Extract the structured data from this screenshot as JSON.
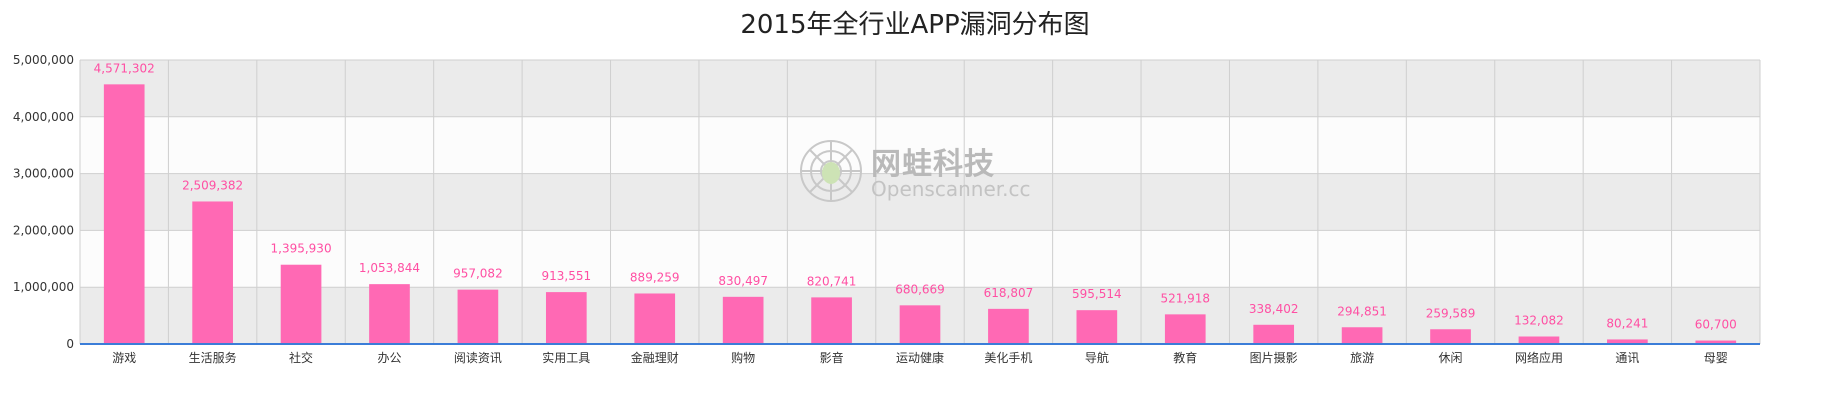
{
  "chart_data": {
    "type": "bar",
    "title": "2015年全行业APP漏洞分布图",
    "categories": [
      "游戏",
      "生活服务",
      "社交",
      "办公",
      "阅读资讯",
      "实用工具",
      "金融理财",
      "购物",
      "影音",
      "运动健康",
      "美化手机",
      "导航",
      "教育",
      "图片摄影",
      "旅游",
      "休闲",
      "网络应用",
      "通讯",
      "母婴"
    ],
    "values": [
      4571302,
      2509382,
      1395930,
      1053844,
      957082,
      913551,
      889259,
      830497,
      820741,
      680669,
      618807,
      595514,
      521918,
      338402,
      294851,
      259589,
      132082,
      80241,
      60700
    ],
    "data_labels": [
      "4,571,302",
      "2,509,382",
      "1,395,930",
      "1,053,844",
      "957,082",
      "913,551",
      "889,259",
      "830,497",
      "820,741",
      "680,669",
      "618,807",
      "595,514",
      "521,918",
      "338,402",
      "294,851",
      "259,589",
      "132,082",
      "80,241",
      "60,700"
    ],
    "y_ticks": [
      "0",
      "1,000,000",
      "2,000,000",
      "3,000,000",
      "4,000,000",
      "5,000,000"
    ],
    "ylim": [
      0,
      5000000
    ],
    "xlabel": "",
    "ylabel": "",
    "grid": true,
    "colors": {
      "bar": "#ff69b4",
      "label": "#ff4fa3",
      "axis": "#3b7dd8",
      "band_dark": "#ebebeb",
      "band_light": "#fcfcfc",
      "grid": "#cfcfcf"
    }
  },
  "watermark": {
    "title": "网蛙科技",
    "subtitle": "Openscanner.cc"
  }
}
